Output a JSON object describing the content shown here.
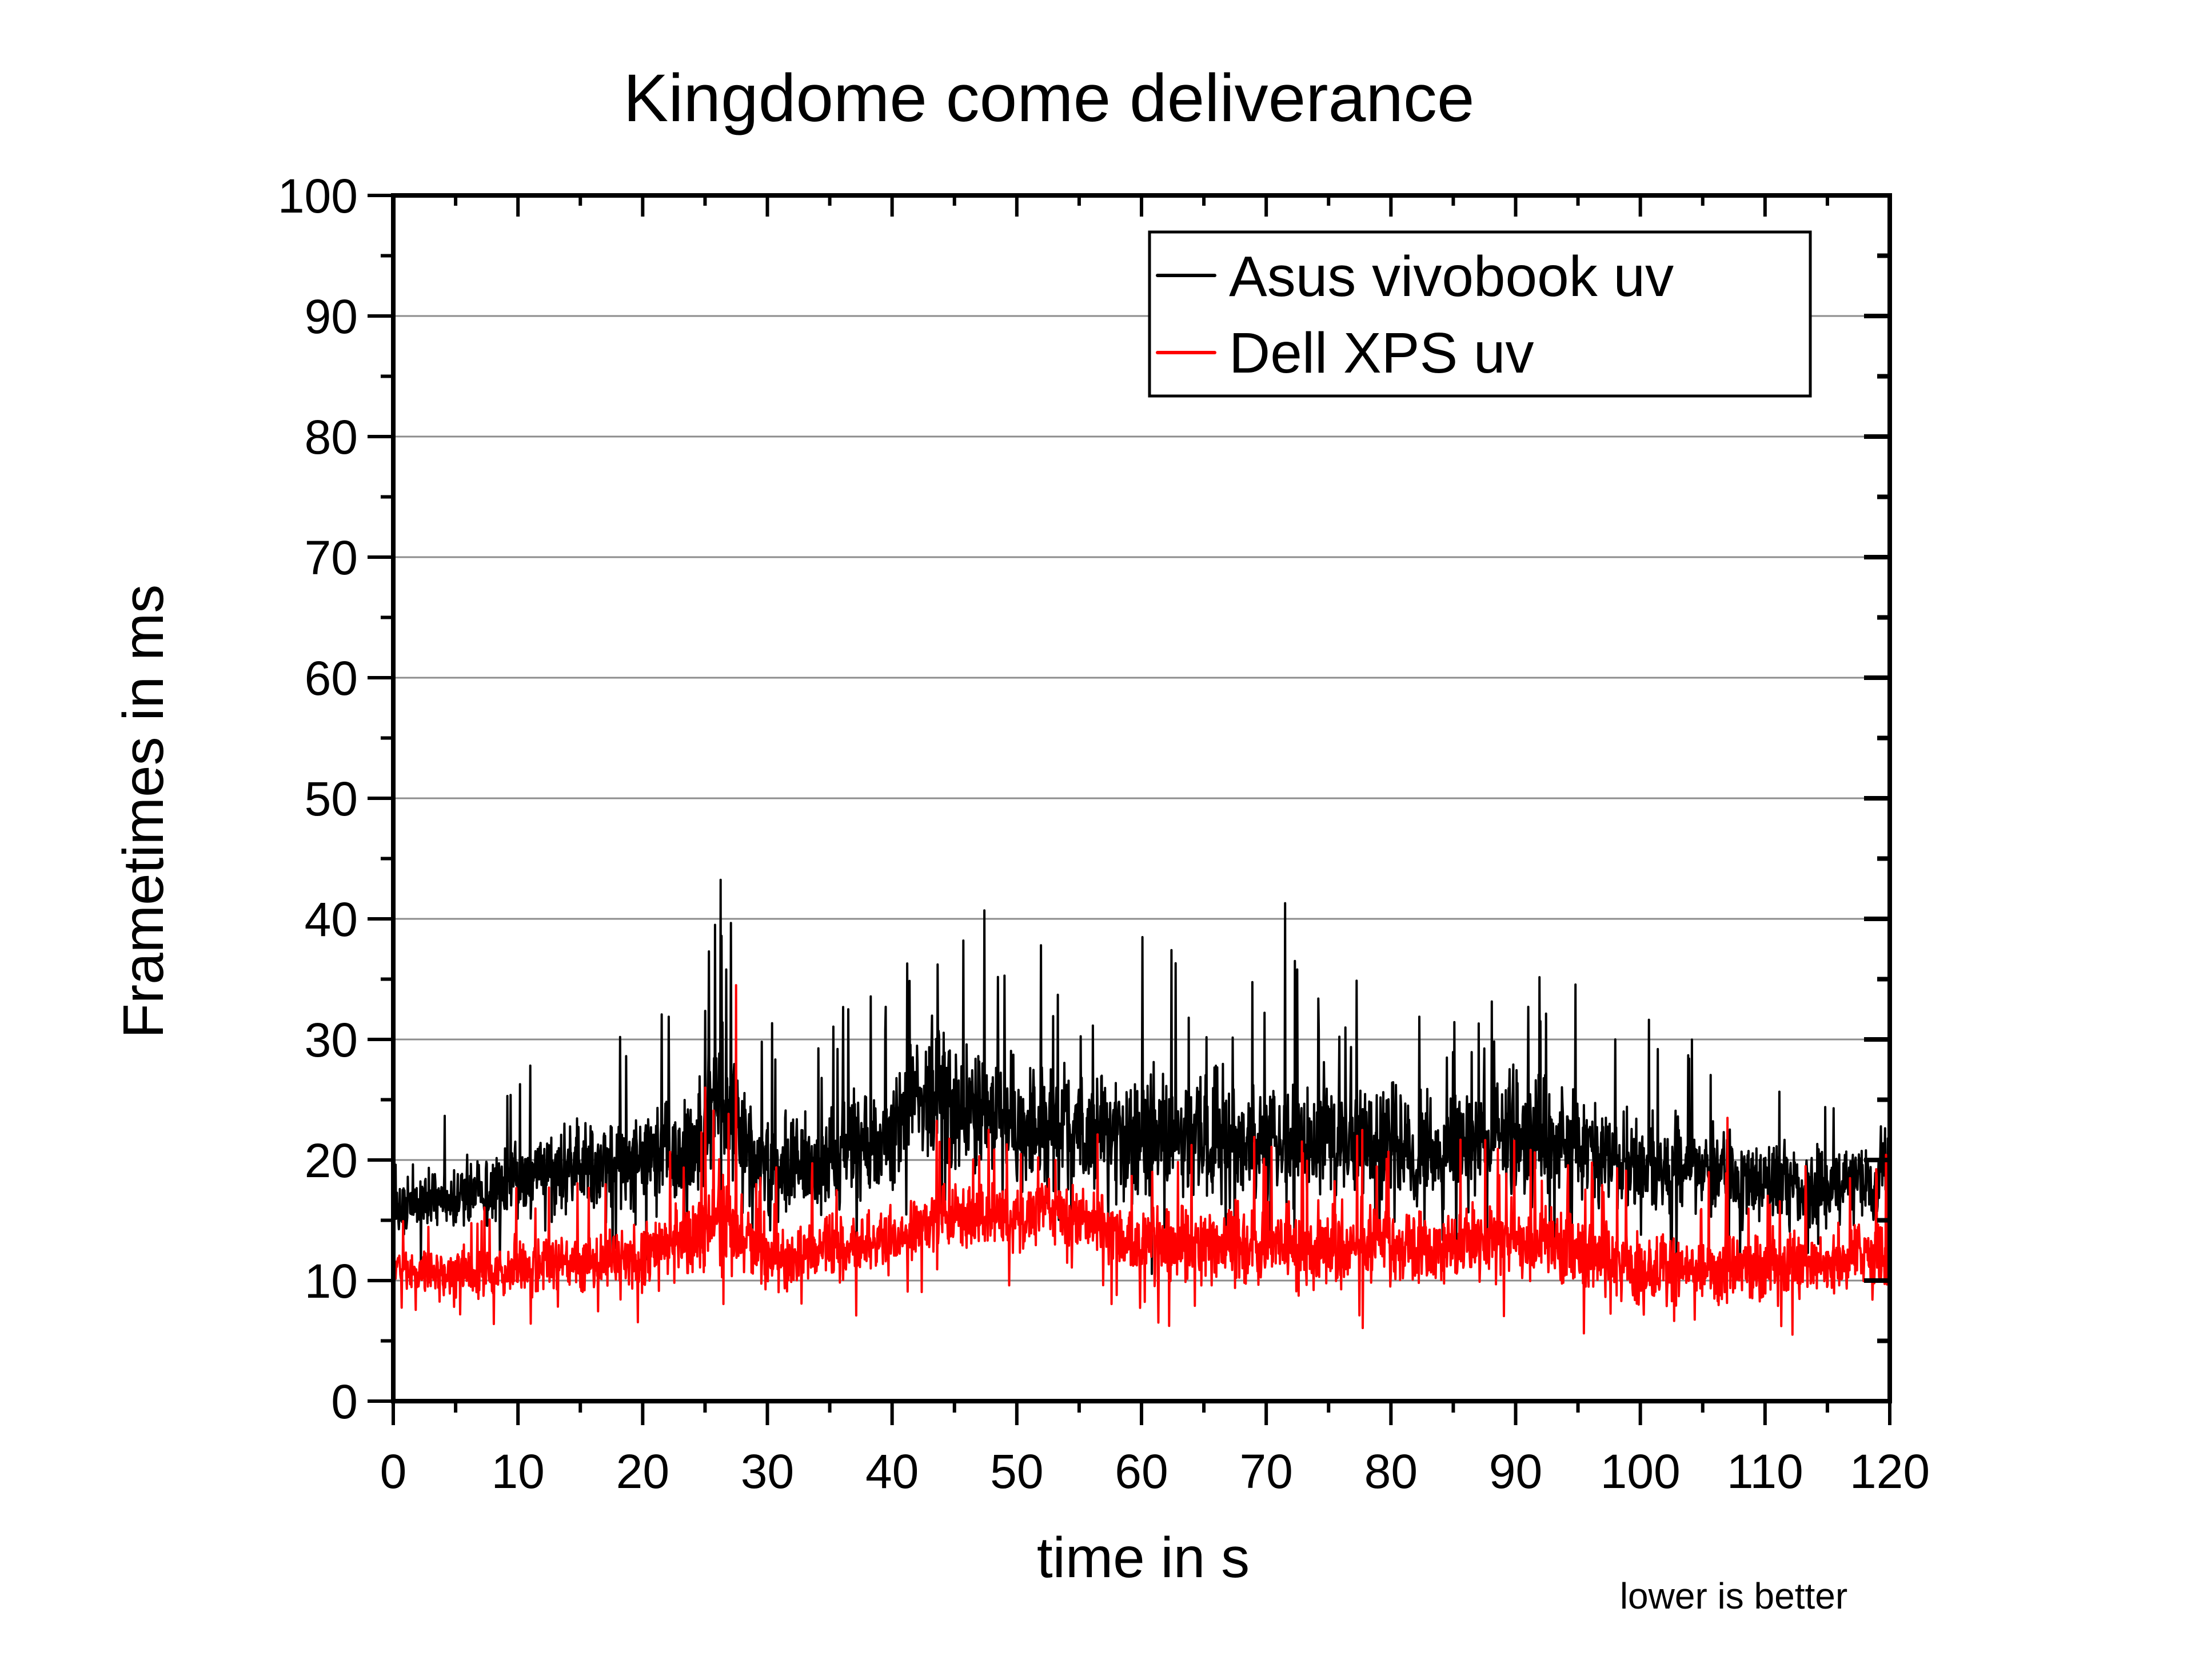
{
  "chart_data": {
    "type": "line",
    "title": "Kingdome come deliverance",
    "xlabel": "time in s",
    "ylabel": "Frametimes in ms",
    "xlim": [
      0,
      120
    ],
    "ylim": [
      0,
      100
    ],
    "x_ticks": [
      0,
      10,
      20,
      30,
      40,
      50,
      60,
      70,
      80,
      90,
      100,
      110,
      120
    ],
    "x_tick_labels": [
      "0",
      "10",
      "20",
      "30",
      "40",
      "50",
      "60",
      "70",
      "80",
      "90",
      "100",
      "110",
      "120"
    ],
    "y_ticks": [
      0,
      10,
      20,
      30,
      40,
      50,
      60,
      70,
      80,
      90,
      100
    ],
    "y_tick_labels": [
      "0",
      "10",
      "20",
      "30",
      "40",
      "50",
      "60",
      "70",
      "80",
      "90",
      "100"
    ],
    "grid": "horizontal",
    "legend_position": "top-right",
    "annotation": "lower is better",
    "series": [
      {
        "name": "Asus vivobook uv",
        "color": "#000000",
        "profile_x": [
          0,
          5,
          10,
          15,
          20,
          24,
          26,
          28,
          30,
          35,
          40,
          42,
          45,
          50,
          55,
          60,
          65,
          70,
          75,
          80,
          85,
          90,
          95,
          100,
          105,
          110,
          115,
          120
        ],
        "profile_mean": [
          16,
          17,
          18,
          19.5,
          20,
          21,
          26,
          22,
          19,
          20,
          22,
          26,
          24,
          23,
          22,
          22.5,
          21.5,
          21.5,
          21,
          21,
          20.5,
          22.5,
          21,
          19.5,
          19,
          18,
          17.5,
          19
        ],
        "profile_spread": [
          2.5,
          3,
          3.5,
          4,
          4.5,
          5,
          7,
          5,
          4.5,
          5,
          5.5,
          6,
          6,
          6,
          5.5,
          6,
          5.5,
          5.5,
          5,
          5,
          5,
          5.5,
          5,
          4.5,
          4,
          4,
          3.5,
          4
        ],
        "peaks": [
          {
            "x": 25.8,
            "y": 39.5
          },
          {
            "x": 25.3,
            "y": 37.3
          },
          {
            "x": 26.7,
            "y": 35.8
          },
          {
            "x": 18.2,
            "y": 30.2
          },
          {
            "x": 36.5,
            "y": 32.5
          },
          {
            "x": 39.5,
            "y": 32.7
          },
          {
            "x": 41.2,
            "y": 36.3
          },
          {
            "x": 45.7,
            "y": 38.2
          },
          {
            "x": 47.4,
            "y": 40.7
          },
          {
            "x": 53.3,
            "y": 33.7
          },
          {
            "x": 71.5,
            "y": 41.3
          },
          {
            "x": 72.3,
            "y": 36.5
          },
          {
            "x": 63.8,
            "y": 31.8
          },
          {
            "x": 91.0,
            "y": 32.7
          },
          {
            "x": 92.0,
            "y": 31.5
          },
          {
            "x": 98.0,
            "y": 30.0
          },
          {
            "x": 84.5,
            "y": 28.5
          }
        ]
      },
      {
        "name": "Dell XPS uv",
        "color": "#ff0000",
        "profile_x": [
          0,
          5,
          10,
          15,
          20,
          24,
          26,
          28,
          30,
          35,
          40,
          45,
          50,
          52,
          55,
          60,
          65,
          70,
          75,
          80,
          85,
          90,
          95,
          100,
          105,
          110,
          115,
          120
        ],
        "profile_mean": [
          11,
          10.5,
          11,
          11.5,
          12,
          13.5,
          15.5,
          13.5,
          12,
          12.5,
          13.5,
          15.5,
          15,
          16,
          15,
          13,
          13,
          13,
          13,
          13,
          12.5,
          13.5,
          12.5,
          11,
          11,
          11,
          11.5,
          12.5
        ],
        "profile_spread": [
          1.8,
          2.2,
          2.5,
          2.5,
          3,
          3.5,
          5,
          4,
          3,
          3,
          3,
          3,
          3,
          2.5,
          3,
          3.5,
          3.5,
          3.5,
          3.5,
          3.5,
          3.5,
          3.5,
          3.5,
          3.5,
          3,
          3,
          3,
          3
        ],
        "peaks": [
          {
            "x": 27.5,
            "y": 34.5
          },
          {
            "x": 25.0,
            "y": 26.0
          },
          {
            "x": 43.8,
            "y": 21.5
          },
          {
            "x": 49.2,
            "y": 21.3
          },
          {
            "x": 77.3,
            "y": 22.0
          },
          {
            "x": 89.9,
            "y": 21.6
          },
          {
            "x": 107.0,
            "y": 23.5
          },
          {
            "x": 116.8,
            "y": 18.5
          }
        ]
      }
    ]
  }
}
